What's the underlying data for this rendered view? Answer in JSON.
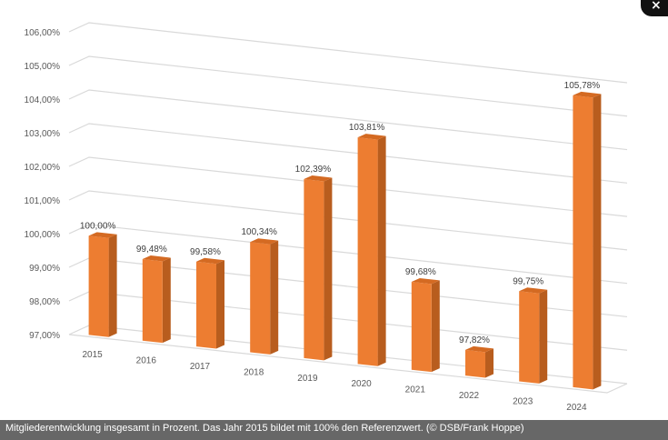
{
  "chart_data": {
    "type": "bar",
    "categories": [
      "2015",
      "2016",
      "2017",
      "2018",
      "2019",
      "2020",
      "2021",
      "2022",
      "2023",
      "2024"
    ],
    "values": [
      100.0,
      99.48,
      99.58,
      100.34,
      102.39,
      103.81,
      99.68,
      97.82,
      99.75,
      105.78
    ],
    "data_labels": [
      "100,00%",
      "99,48%",
      "99,58%",
      "100,34%",
      "102,39%",
      "103,81%",
      "99,68%",
      "97,82%",
      "99,75%",
      "105,78%"
    ],
    "y_ticks": [
      "97,00%",
      "98,00%",
      "99,00%",
      "100,00%",
      "101,00%",
      "102,00%",
      "103,00%",
      "104,00%",
      "105,00%",
      "106,00%"
    ],
    "ylim": [
      97,
      106
    ],
    "grid": true,
    "style": "3d-column",
    "bar_color": "#ED7D31"
  },
  "caption": "Mitgliederentwicklung insgesamt in Prozent. Das Jahr 2015 bildet mit 100% den Referenzwert. (© DSB/Frank Hoppe)",
  "close_icon": "×",
  "colors": {
    "caption_bg": "#3c3c3c",
    "close_bg": "#111111"
  }
}
